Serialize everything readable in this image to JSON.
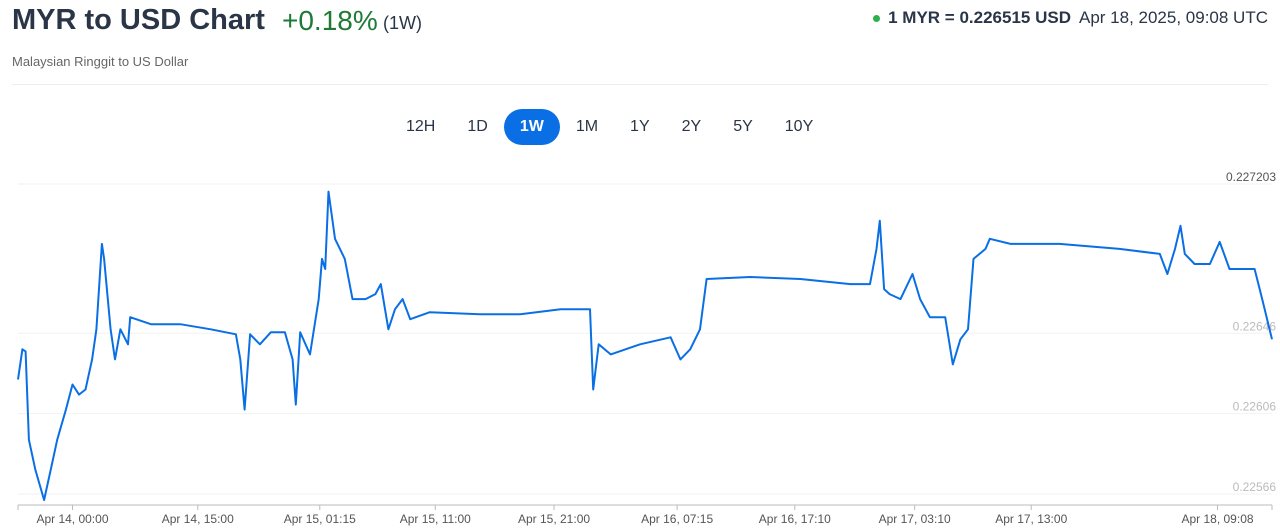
{
  "header": {
    "title": "MYR to USD Chart",
    "change": "+0.18%",
    "period": "(1W)",
    "subtitle": "Malaysian Ringgit to US Dollar",
    "rate": "1 MYR = 0.226515 USD",
    "timestamp": "Apr 18, 2025, 09:08 UTC"
  },
  "colors": {
    "line": "#0a6fe4",
    "positive": "#1e7a35",
    "status": "#2ab24a"
  },
  "tabs": [
    {
      "label": "12H"
    },
    {
      "label": "1D"
    },
    {
      "label": "1W",
      "active": true
    },
    {
      "label": "1M"
    },
    {
      "label": "1Y"
    },
    {
      "label": "2Y"
    },
    {
      "label": "5Y"
    },
    {
      "label": "10Y"
    }
  ],
  "chart_data": {
    "type": "line",
    "title": "",
    "xlabel": "",
    "ylabel": "",
    "ylim": [
      0.22566,
      0.227203
    ],
    "xlim": [
      -5,
      110.1
    ],
    "y_ticks": [
      "0.227203",
      "0.22646",
      "0.22606",
      "0.22566"
    ],
    "x_ticks": [
      {
        "label": "Apr 14, 00:00",
        "h": 0
      },
      {
        "label": "Apr 14, 15:00",
        "h": 11.5
      },
      {
        "label": "Apr 15, 01:15",
        "h": 22.7
      },
      {
        "label": "Apr 15, 11:00",
        "h": 33.3
      },
      {
        "label": "Apr 15, 21:00",
        "h": 44.2
      },
      {
        "label": "Apr 16, 07:15",
        "h": 55.5
      },
      {
        "label": "Apr 16, 17:10",
        "h": 66.3
      },
      {
        "label": "Apr 17, 03:10",
        "h": 77.3
      },
      {
        "label": "Apr 17, 13:00",
        "h": 88.0
      },
      {
        "label": "Apr 18, 09:08",
        "h": 105.1
      }
    ],
    "x": [
      -5.0,
      -4.6,
      -4.3,
      -4.0,
      -3.4,
      -2.6,
      -2.0,
      -1.4,
      -0.6,
      0,
      0.6,
      1.2,
      1.8,
      2.2,
      2.7,
      2.9,
      3.5,
      3.9,
      4.4,
      5.1,
      5.3,
      7.2,
      9.9,
      12.7,
      15.0,
      15.4,
      15.8,
      16.3,
      17.2,
      18.2,
      19.5,
      20.2,
      20.5,
      20.9,
      21.8,
      22.6,
      22.9,
      23.2,
      23.5,
      24.1,
      25.0,
      25.7,
      26.9,
      27.8,
      28.3,
      29.0,
      29.6,
      30.3,
      31.0,
      32.8,
      37.4,
      41.1,
      44.8,
      47.5,
      47.8,
      48.3,
      49.4,
      52.1,
      54.9,
      55.8,
      56.7,
      57.6,
      58.2,
      62.2,
      66.8,
      71.4,
      73.2,
      73.8,
      74.1,
      74.5,
      75.0,
      76.0,
      77.1,
      77.8,
      78.7,
      80.1,
      80.8,
      81.5,
      82.2,
      82.7,
      83.8,
      84.2,
      86.1,
      90.6,
      96.1,
      99.8,
      100.5,
      101.2,
      101.7,
      102.1,
      103.0,
      104.4,
      105.3,
      106.2,
      108.5,
      109.2,
      110.1
    ],
    "y": [
      0.22623,
      0.22638,
      0.22637,
      0.22593,
      0.22578,
      0.22563,
      0.22578,
      0.22593,
      0.22608,
      0.226205,
      0.226155,
      0.22618,
      0.22633,
      0.22648,
      0.226905,
      0.22683,
      0.22648,
      0.22633,
      0.22648,
      0.226405,
      0.22654,
      0.226505,
      0.226505,
      0.22648,
      0.226455,
      0.22633,
      0.22608,
      0.226455,
      0.226405,
      0.226465,
      0.226465,
      0.22633,
      0.226105,
      0.226465,
      0.226355,
      0.22663,
      0.22683,
      0.22678,
      0.227165,
      0.22693,
      0.22683,
      0.22663,
      0.22663,
      0.226655,
      0.226705,
      0.22648,
      0.22658,
      0.22663,
      0.22653,
      0.226565,
      0.226555,
      0.226555,
      0.22658,
      0.22658,
      0.22618,
      0.226405,
      0.226355,
      0.226405,
      0.22644,
      0.22633,
      0.22638,
      0.22648,
      0.22673,
      0.22674,
      0.22673,
      0.226705,
      0.226705,
      0.22688,
      0.22702,
      0.22668,
      0.226655,
      0.22663,
      0.226755,
      0.22663,
      0.22654,
      0.22654,
      0.226305,
      0.22643,
      0.22648,
      0.22683,
      0.22688,
      0.22693,
      0.226905,
      0.226905,
      0.22688,
      0.226855,
      0.226755,
      0.22688,
      0.226995,
      0.226855,
      0.226805,
      0.226805,
      0.226915,
      0.22678,
      0.22678,
      0.22663,
      0.22643
    ]
  }
}
